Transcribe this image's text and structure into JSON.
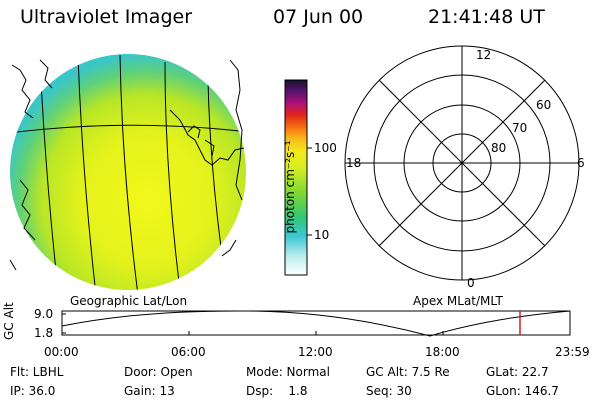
{
  "header": {
    "title": "Ultraviolet Imager",
    "date": "07 Jun 00",
    "time": "21:41:48 UT"
  },
  "colorbar": {
    "unit_label": "photon cm⁻²s⁻¹",
    "tick_labels": [
      "100",
      "10"
    ]
  },
  "polar_plot": {
    "mlt_labels": [
      "12",
      "18",
      "6",
      "0"
    ],
    "lat_labels": [
      "60",
      "70",
      "80"
    ]
  },
  "image_caption": "Geographic Lat/Lon",
  "polar_caption": "Apex MLat/MLT",
  "altitude_plot": {
    "axis_title": "GC Alt",
    "y_ticks": [
      "9.0",
      "1.8"
    ],
    "x_ticks": [
      "00:00",
      "06:00",
      "12:00",
      "18:00",
      "23:59"
    ],
    "current_marker_color": "#d42020"
  },
  "status": {
    "row1": {
      "flt": "Flt: LBHL",
      "door": "Door: Open",
      "mode": "Mode: Normal",
      "gc_alt": "GC Alt: 7.5 Re",
      "glat": "GLat: 22.7"
    },
    "row2": {
      "ip": "IP: 36.0",
      "gain": "Gain: 13",
      "dsp": "Dsp:    1.8",
      "seq": "Seq: 30",
      "glon": "GLon: 146.7"
    }
  }
}
